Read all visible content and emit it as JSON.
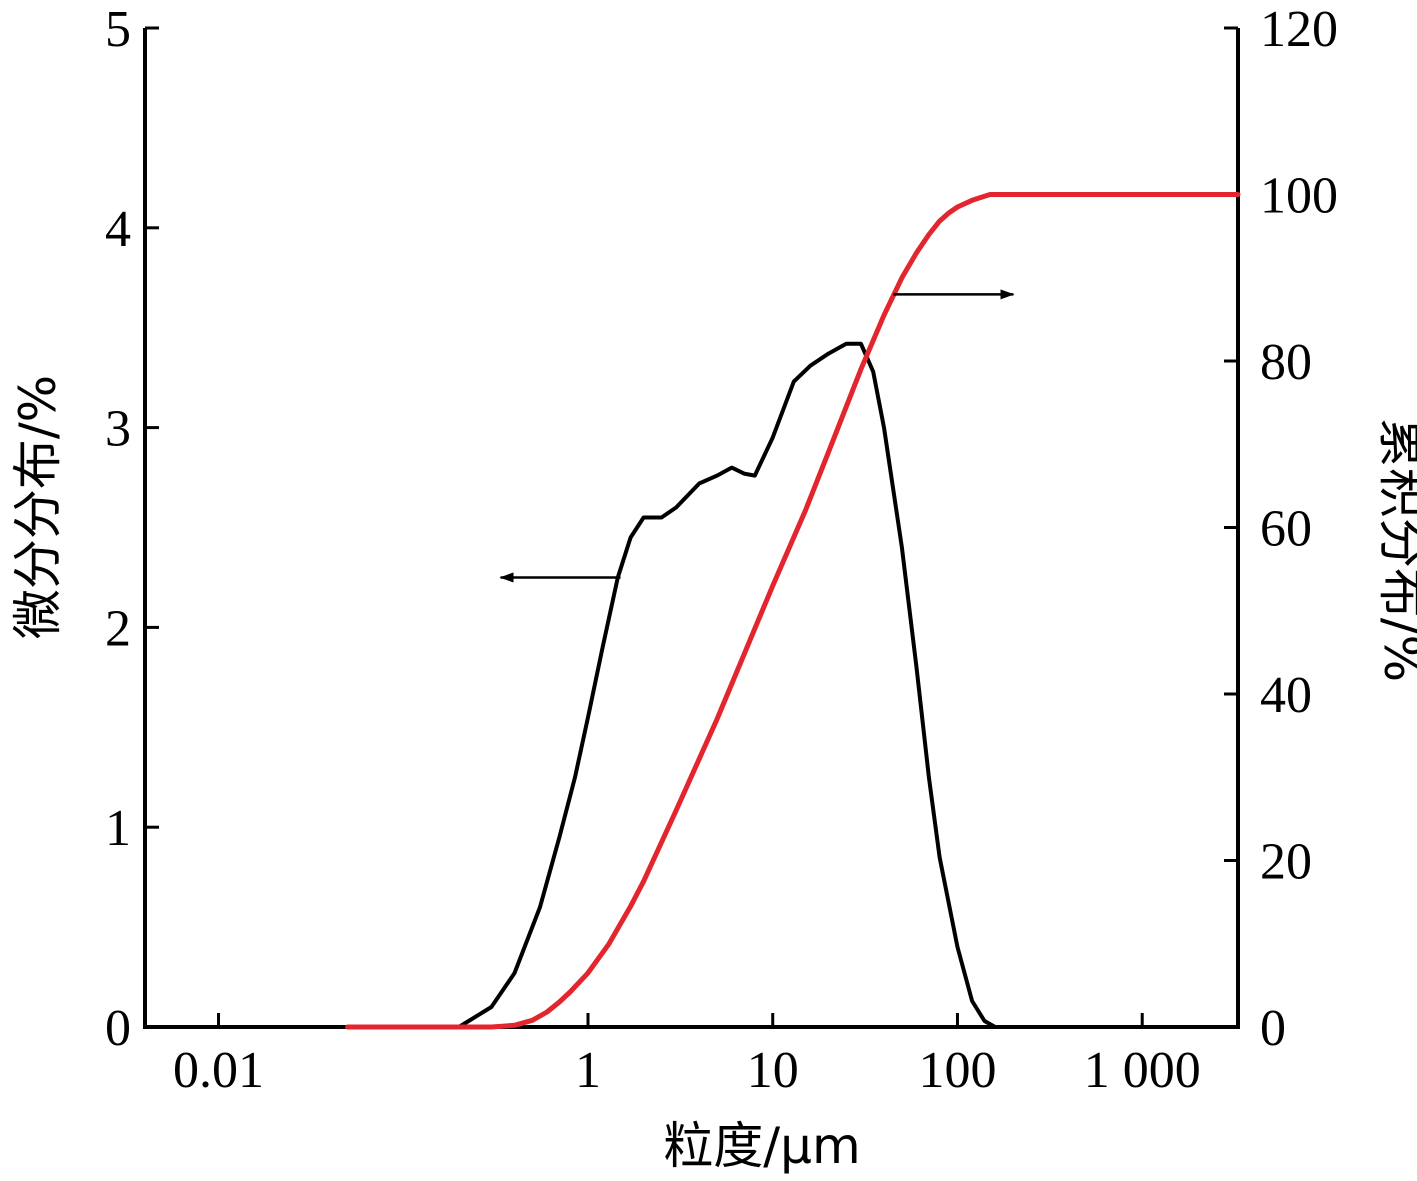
{
  "chart_data": {
    "type": "line",
    "title": "",
    "xlabel": "粒度/μm",
    "ylabel_left": "微分分布/%",
    "ylabel_right": "累积分布/%",
    "x_scale": "log",
    "xlim": [
      0.004,
      3300
    ],
    "ylim_left": [
      0,
      5
    ],
    "ylim_right": [
      0,
      120
    ],
    "grid": false,
    "legend": "none",
    "x_ticks": [
      {
        "value": 0.01,
        "label": "0.01"
      },
      {
        "value": 1,
        "label": "1"
      },
      {
        "value": 10,
        "label": "10"
      },
      {
        "value": 100,
        "label": "100"
      },
      {
        "value": 1000,
        "label": "1 000"
      }
    ],
    "y_left_ticks": [
      {
        "value": 0,
        "label": "0"
      },
      {
        "value": 1,
        "label": "1"
      },
      {
        "value": 2,
        "label": "2"
      },
      {
        "value": 3,
        "label": "3"
      },
      {
        "value": 4,
        "label": "4"
      },
      {
        "value": 5,
        "label": "5"
      }
    ],
    "y_right_ticks": [
      {
        "value": 0,
        "label": "0"
      },
      {
        "value": 20,
        "label": "20"
      },
      {
        "value": 40,
        "label": "40"
      },
      {
        "value": 60,
        "label": "60"
      },
      {
        "value": 80,
        "label": "80"
      },
      {
        "value": 100,
        "label": "100"
      },
      {
        "value": 120,
        "label": "120"
      }
    ],
    "series": [
      {
        "axis": "left",
        "color": "#000000",
        "x": [
          0.05,
          0.2,
          0.3,
          0.4,
          0.55,
          0.7,
          0.85,
          1.0,
          1.2,
          1.45,
          1.7,
          2.0,
          2.5,
          3.0,
          4.0,
          5.0,
          6.0,
          7.0,
          8.0,
          10.0,
          13.0,
          16.0,
          20.0,
          25.0,
          30.0,
          35.0,
          40.0,
          50.0,
          60.0,
          70.0,
          80.0,
          100.0,
          120.0,
          140.0,
          160.0,
          180.0,
          200.0,
          500.0,
          3000.0
        ],
        "y": [
          0.0,
          0.0,
          0.1,
          0.27,
          0.6,
          0.95,
          1.25,
          1.55,
          1.9,
          2.25,
          2.45,
          2.55,
          2.55,
          2.6,
          2.72,
          2.76,
          2.8,
          2.77,
          2.76,
          2.95,
          3.23,
          3.31,
          3.37,
          3.42,
          3.42,
          3.28,
          3.0,
          2.4,
          1.8,
          1.25,
          0.85,
          0.4,
          0.13,
          0.03,
          0.0,
          0.0,
          0.0,
          0.0,
          0.0
        ]
      },
      {
        "axis": "right",
        "color": "#e3262e",
        "x": [
          0.05,
          0.2,
          0.3,
          0.4,
          0.5,
          0.6,
          0.7,
          0.8,
          1.0,
          1.3,
          1.7,
          2.0,
          3.0,
          5.0,
          10.0,
          15.0,
          20.0,
          30.0,
          40.0,
          50.0,
          60.0,
          70.0,
          80.0,
          90.0,
          100.0,
          120.0,
          150.0,
          200.0,
          500.0,
          3300.0
        ],
        "y": [
          0.0,
          0.0,
          0.0,
          0.2,
          0.8,
          1.8,
          3.0,
          4.2,
          6.5,
          10.0,
          14.5,
          17.5,
          26.0,
          37.0,
          53.0,
          62.0,
          69.0,
          79.0,
          85.5,
          90.0,
          93.0,
          95.2,
          96.8,
          97.8,
          98.5,
          99.3,
          100.0,
          100.0,
          100.0,
          100.0
        ]
      }
    ],
    "annotations": [
      {
        "type": "arrow",
        "direction": "left",
        "target_axis": "left",
        "at_x": 1.5,
        "at_y": 2.25
      },
      {
        "type": "arrow",
        "direction": "right",
        "target_axis": "right",
        "at_x": 45,
        "at_y": 88
      }
    ]
  }
}
